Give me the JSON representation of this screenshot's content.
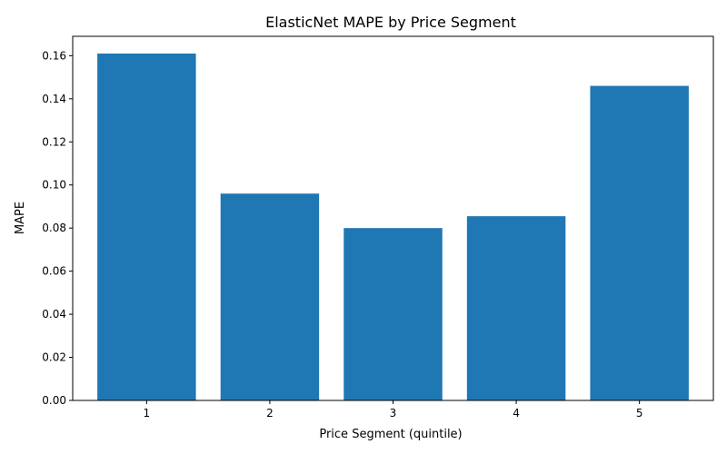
{
  "chart_data": {
    "type": "bar",
    "title": "ElasticNet MAPE by Price Segment",
    "xlabel": "Price Segment (quintile)",
    "ylabel": "MAPE",
    "categories": [
      "1",
      "2",
      "3",
      "4",
      "5"
    ],
    "values": [
      0.161,
      0.096,
      0.08,
      0.0855,
      0.146
    ],
    "ylim": [
      0,
      0.169
    ],
    "yticks": [
      0.0,
      0.02,
      0.04,
      0.06,
      0.08,
      0.1,
      0.12,
      0.14,
      0.16
    ],
    "ytick_labels": [
      "0.00",
      "0.02",
      "0.04",
      "0.06",
      "0.08",
      "0.10",
      "0.12",
      "0.14",
      "0.16"
    ],
    "bar_color": "#1f77b4",
    "grid": false,
    "legend": "none"
  }
}
